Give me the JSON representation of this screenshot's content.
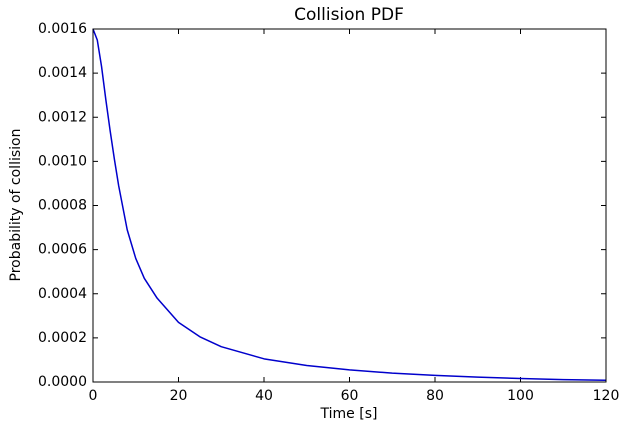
{
  "chart_data": {
    "type": "line",
    "title": "Collision PDF",
    "x_label": "Time [s]",
    "y_label": "Probability of collision",
    "x": [
      0,
      1,
      2,
      3,
      4,
      5,
      6,
      8,
      10,
      12,
      15,
      20,
      25,
      30,
      40,
      50,
      60,
      70,
      80,
      90,
      100,
      110,
      120
    ],
    "series": [
      {
        "name": "Collision PDF",
        "color": "#0000cc",
        "values": [
          0.0016,
          0.00155,
          0.00143,
          0.00128,
          0.00114,
          0.00101,
          0.00089,
          0.00069,
          0.00056,
          0.00047,
          0.00038,
          0.00027,
          0.000205,
          0.00016,
          0.000105,
          7.5e-05,
          5.5e-05,
          4e-05,
          3e-05,
          2.2e-05,
          1.6e-05,
          1.1e-05,
          8e-06
        ]
      }
    ],
    "xlim": [
      0,
      120
    ],
    "xticks": [
      0,
      20,
      40,
      60,
      80,
      100,
      120
    ],
    "ylim": [
      0,
      0.0016
    ],
    "yticks": [
      {
        "value": 0,
        "label": "0.0000"
      },
      {
        "value": 0.0002,
        "label": "0.0002"
      },
      {
        "value": 0.0004,
        "label": "0.0004"
      },
      {
        "value": 0.0006,
        "label": "0.0006"
      },
      {
        "value": 0.0008,
        "label": "0.0008"
      },
      {
        "value": 0.001,
        "label": "0.0010"
      },
      {
        "value": 0.0012,
        "label": "0.0012"
      },
      {
        "value": 0.0014,
        "label": "0.0014"
      },
      {
        "value": 0.0016,
        "label": "0.0016"
      }
    ],
    "grid": false
  }
}
